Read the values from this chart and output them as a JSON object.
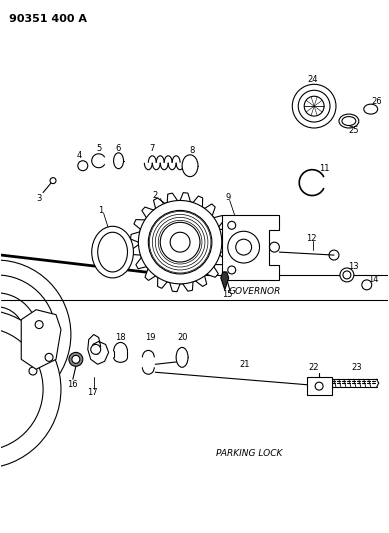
{
  "title": "90351 400 A",
  "bg_color": "#ffffff",
  "line_color": "#000000",
  "governor_label": "GOVERNOR",
  "parking_label": "PARKING LOCK",
  "figsize": [
    3.89,
    5.33
  ],
  "dpi": 100
}
